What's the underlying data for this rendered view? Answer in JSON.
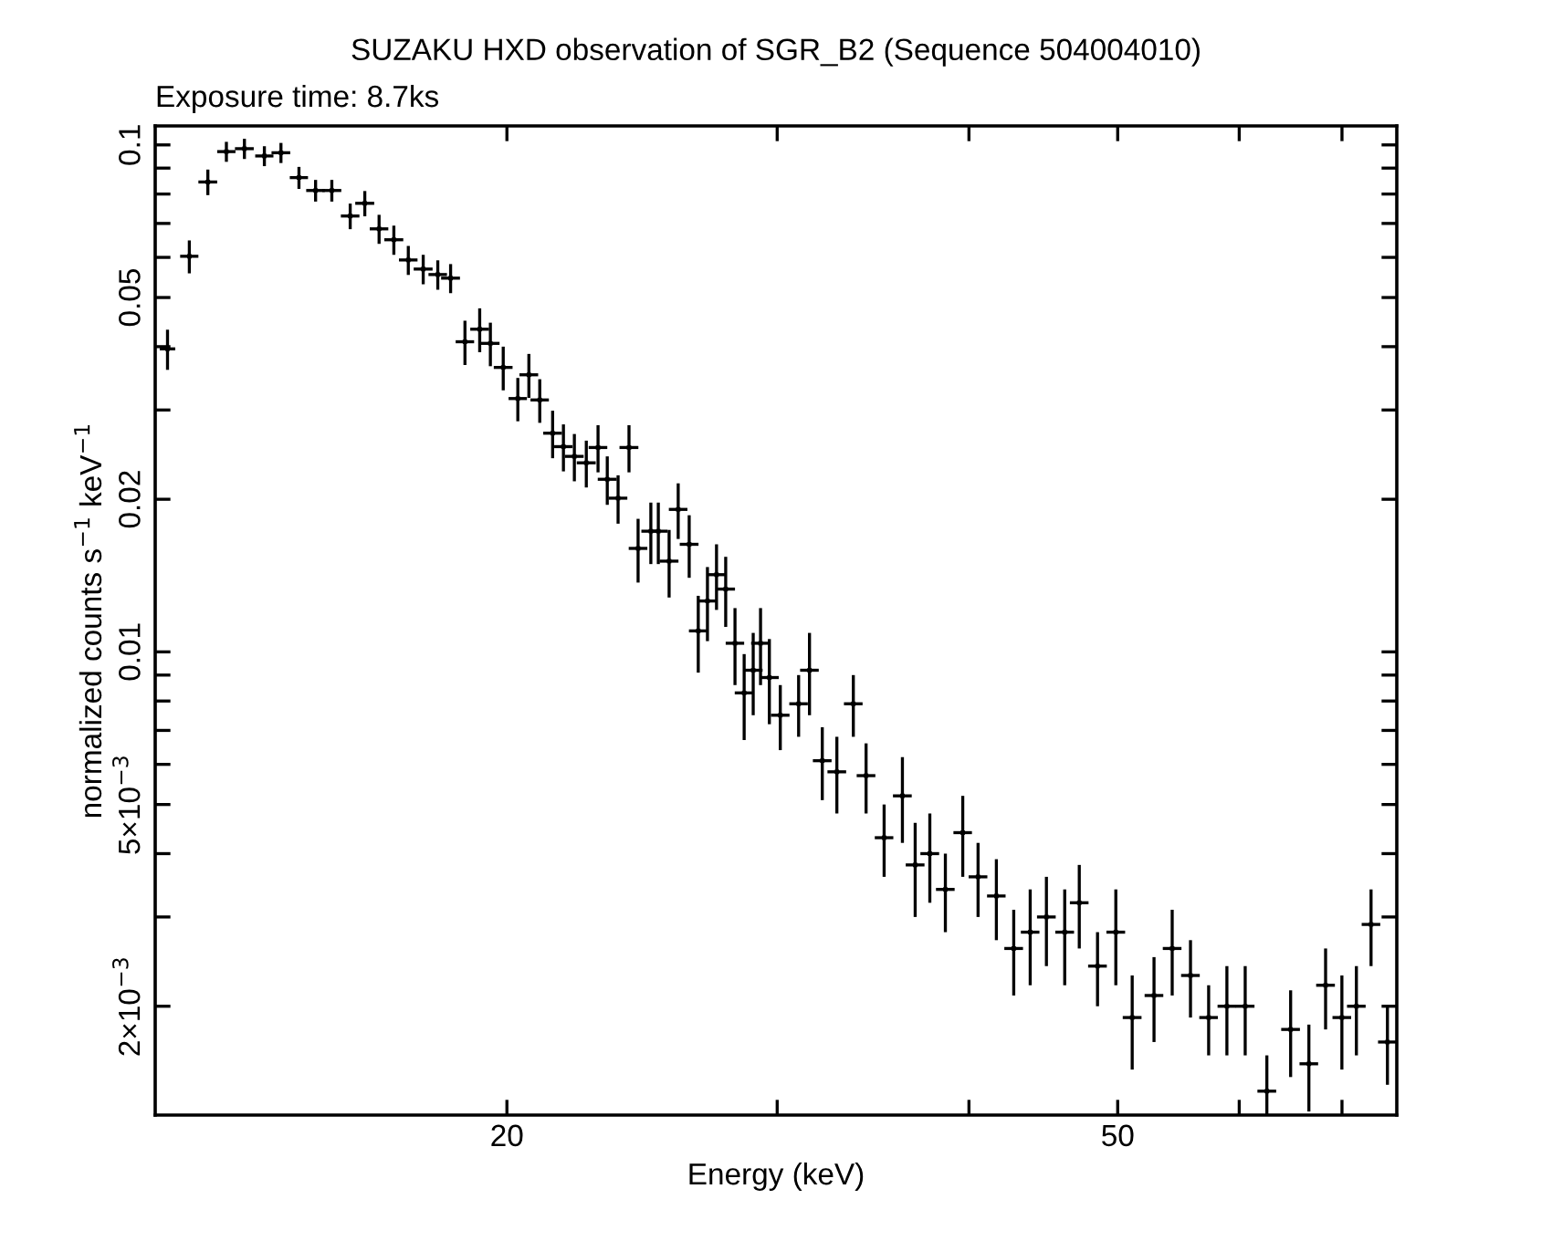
{
  "chart_data": {
    "type": "scatter",
    "title": "SUZAKU HXD observation of SGR_B2 (Sequence 504004010)",
    "subtitle": "Exposure time: 8.7ks",
    "xlabel": "Energy (keV)",
    "ylabel": "normalized counts s$^{−1}$ keV$^{−1}$",
    "log": "xy",
    "xlim": [
      11.8,
      76.0
    ],
    "ylim": [
      0.00122,
      0.109
    ],
    "xticks": [
      20,
      {
        "value": 30,
        "label": null
      },
      {
        "value": 40,
        "label": null
      },
      50,
      {
        "value": 60,
        "label": null
      },
      {
        "value": 70,
        "label": null
      }
    ],
    "yticks": [
      0.1,
      {
        "value": 0.09,
        "label": null
      },
      {
        "value": 0.08,
        "label": null
      },
      {
        "value": 0.07,
        "label": null
      },
      {
        "value": 0.06,
        "label": null
      },
      0.05,
      {
        "value": 0.04,
        "label": null
      },
      {
        "value": 0.03,
        "label": null
      },
      0.02,
      0.01,
      {
        "value": 0.009,
        "label": null
      },
      {
        "value": 0.008,
        "label": null
      },
      {
        "value": 0.007,
        "label": null
      },
      {
        "value": 0.006,
        "label": null
      },
      {
        "value": 0.005,
        "label": "5×10$^{−3}$"
      },
      {
        "value": 0.004,
        "label": null
      },
      {
        "value": 0.003,
        "label": null
      },
      {
        "value": 0.002,
        "label": "2×10$^{−3}$"
      }
    ],
    "series": [
      {
        "color": "#000000",
        "x": [
          12.02,
          12.42,
          12.77,
          13.13,
          13.49,
          13.9,
          14.25,
          14.64,
          15.01,
          15.38,
          15.81,
          16.16,
          16.51,
          16.88,
          17.25,
          17.64,
          18.03,
          18.38,
          18.78,
          19.2,
          19.51,
          19.89,
          20.33,
          20.67,
          21.01,
          21.42,
          21.77,
          22.13,
          22.53,
          22.93,
          23.25,
          23.63,
          24.02,
          24.35,
          24.82,
          25.1,
          25.51,
          25.86,
          26.29,
          26.65,
          27.02,
          27.39,
          27.77,
          28.16,
          28.55,
          28.94,
          29.26,
          29.65,
          30.14,
          30.98,
          31.49,
          32.1,
          32.81,
          33.63,
          34.28,
          35.22,
          36.2,
          36.9,
          37.72,
          38.61,
          39.63,
          40.55,
          41.68,
          42.78,
          43.85,
          44.93,
          46.18,
          47.2,
          48.51,
          49.86,
          51.1,
          52.8,
          54.26,
          55.77,
          57.31,
          58.9,
          60.54,
          62.54,
          64.81,
          66.61,
          68.3,
          69.99,
          71.53,
          73.12,
          74.94
        ],
        "values": [
          0.0396,
          0.0603,
          0.0845,
          0.097,
          0.0983,
          0.0951,
          0.0965,
          0.0862,
          0.0813,
          0.0813,
          0.0724,
          0.0767,
          0.0683,
          0.065,
          0.0593,
          0.0569,
          0.0555,
          0.0546,
          0.0409,
          0.0433,
          0.0406,
          0.0364,
          0.0316,
          0.0352,
          0.0314,
          0.027,
          0.0254,
          0.0243,
          0.0236,
          0.0253,
          0.0219,
          0.0201,
          0.0253,
          0.016,
          0.0173,
          0.0173,
          0.0151,
          0.0191,
          0.0163,
          0.011,
          0.0126,
          0.0142,
          0.0133,
          0.0104,
          0.0083,
          0.0092,
          0.0104,
          0.0089,
          0.0075,
          0.0079,
          0.0092,
          0.0061,
          0.0058,
          0.0079,
          0.0057,
          0.0043,
          0.0052,
          0.0038,
          0.004,
          0.0034,
          0.0044,
          0.0036,
          0.0033,
          0.0026,
          0.0028,
          0.003,
          0.0028,
          0.0032,
          0.0024,
          0.0028,
          0.0019,
          0.0021,
          0.0026,
          0.0023,
          0.0019,
          0.002,
          0.002,
          0.00136,
          0.0018,
          0.00154,
          0.0022,
          0.0019,
          0.002,
          0.0029,
          0.0017
        ],
        "errors": [
          0.0036,
          0.0045,
          0.0049,
          0.0044,
          0.0045,
          0.0043,
          0.0044,
          0.0043,
          0.004,
          0.004,
          0.0042,
          0.0044,
          0.0045,
          0.0043,
          0.0039,
          0.0038,
          0.0037,
          0.0036,
          0.0041,
          0.0043,
          0.004,
          0.0036,
          0.0031,
          0.0035,
          0.0031,
          0.0029,
          0.0027,
          0.0026,
          0.0025,
          0.0027,
          0.0024,
          0.0022,
          0.0027,
          0.0023,
          0.0024,
          0.0024,
          0.0023,
          0.0024,
          0.0023,
          0.0019,
          0.0021,
          0.0021,
          0.0021,
          0.0018,
          0.0016,
          0.0017,
          0.0018,
          0.0017,
          0.0011,
          0.0011,
          0.0017,
          0.001,
          0.001,
          0.0011,
          0.0009,
          0.0007,
          0.001,
          0.0008,
          0.0008,
          0.0006,
          0.0008,
          0.0006,
          0.0006,
          0.0005,
          0.0006,
          0.0006,
          0.0006,
          0.0006,
          0.0004,
          0.0006,
          0.0004,
          0.0004,
          0.0005,
          0.0004,
          0.0003,
          0.0004,
          0.0004,
          [
            0.00122,
            0.0016
          ],
          0.00035,
          0.0003,
          0.0004,
          0.0004,
          0.0004,
          0.0005,
          0.0003
        ],
        "xerrors": [
          0.14,
          0.17,
          0.18,
          0.18,
          0.19,
          0.19,
          0.2,
          0.2,
          0.21,
          0.22,
          0.22,
          0.23,
          0.23,
          0.24,
          0.24,
          0.25,
          0.25,
          0.26,
          0.26,
          0.27,
          0.27,
          0.28,
          0.28,
          0.29,
          0.29,
          0.3,
          0.3,
          0.31,
          0.32,
          0.32,
          0.33,
          0.33,
          0.34,
          0.34,
          0.35,
          0.35,
          0.36,
          0.36,
          0.37,
          0.37,
          0.38,
          0.38,
          0.39,
          0.39,
          0.4,
          0.41,
          0.41,
          0.42,
          0.42,
          0.43,
          0.44,
          0.45,
          0.46,
          0.47,
          0.48,
          0.49,
          0.51,
          0.52,
          0.53,
          0.54,
          0.55,
          0.57,
          0.58,
          0.6,
          0.61,
          0.63,
          0.65,
          0.66,
          0.68,
          0.7,
          0.72,
          0.74,
          0.76,
          0.78,
          0.8,
          0.82,
          0.85,
          0.88,
          0.91,
          0.93,
          0.96,
          0.98,
          1.0,
          1.02,
          1.05
        ]
      }
    ]
  }
}
